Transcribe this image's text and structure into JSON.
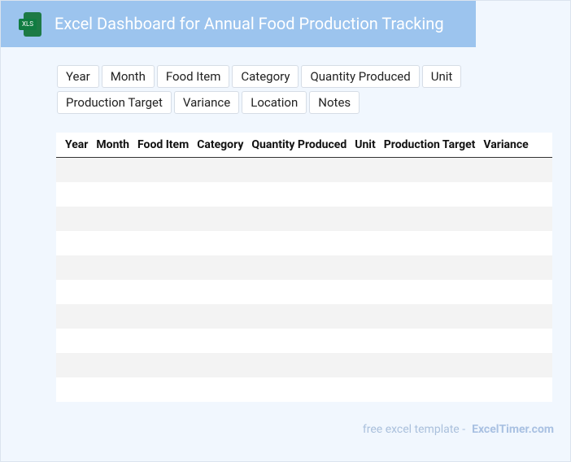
{
  "header": {
    "icon": "XLS",
    "title": "Excel Dashboard for Annual Food Production Tracking"
  },
  "filters": [
    "Year",
    "Month",
    "Food Item",
    "Category",
    "Quantity Produced",
    "Unit",
    "Production Target",
    "Variance",
    "Location",
    "Notes"
  ],
  "table": {
    "columns": [
      "Year",
      "Month",
      "Food Item",
      "Category",
      "Quantity Produced",
      "Unit",
      "Production Target",
      "Variance"
    ]
  },
  "footer": {
    "text": "free excel template -",
    "brand": "ExcelTimer.com"
  }
}
